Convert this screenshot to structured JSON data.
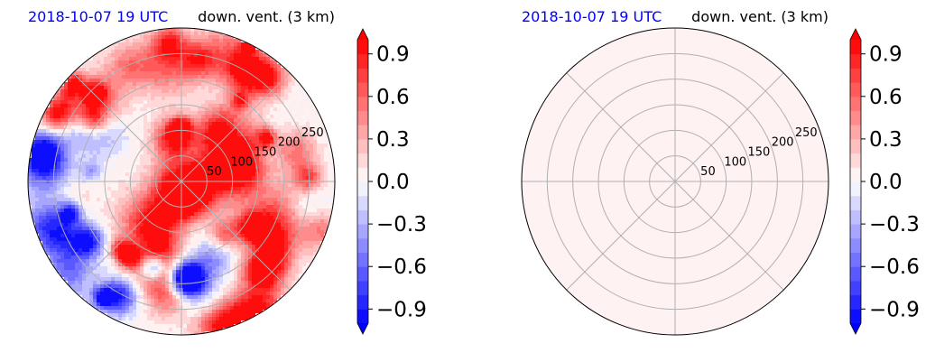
{
  "chart_data": [
    {
      "type": "heatmap",
      "projection": "polar",
      "title_left": "2018-10-07 19 UTC",
      "title_right": "down. vent. (3 km)",
      "radial_ticks": [
        50,
        100,
        150,
        200,
        250
      ],
      "rmax": 300,
      "angular_gridlines_deg": [
        0,
        45,
        90,
        135,
        180,
        225,
        270,
        315
      ],
      "grid": true,
      "field": "positive and negative structures",
      "colorbar": {
        "min": -1.0,
        "max": 1.0,
        "ticks": [
          -0.9,
          -0.6,
          -0.3,
          0.0,
          0.3,
          0.6,
          0.9
        ],
        "tick_labels": [
          "−0.9",
          "−0.6",
          "−0.3",
          "0.0",
          "0.3",
          "0.6",
          "0.9"
        ],
        "colormap": "bwr",
        "extend": "both",
        "levels": 20
      }
    },
    {
      "type": "heatmap",
      "projection": "polar",
      "title_left": "2018-10-07 19 UTC",
      "title_right": "down. vent. (3 km)",
      "radial_ticks": [
        50,
        100,
        150,
        200,
        250
      ],
      "rmax": 300,
      "angular_gridlines_deg": [
        0,
        45,
        90,
        135,
        180,
        225,
        270,
        315
      ],
      "grid": true,
      "field": "uniform near-zero positive",
      "uniform_value": 0.02,
      "colorbar": {
        "min": -1.0,
        "max": 1.0,
        "ticks": [
          -0.9,
          -0.6,
          -0.3,
          0.0,
          0.3,
          0.6,
          0.9
        ],
        "tick_labels": [
          "−0.9",
          "−0.6",
          "−0.3",
          "0.0",
          "0.3",
          "0.6",
          "0.9"
        ],
        "colormap": "bwr",
        "extend": "both",
        "levels": 20
      }
    }
  ]
}
